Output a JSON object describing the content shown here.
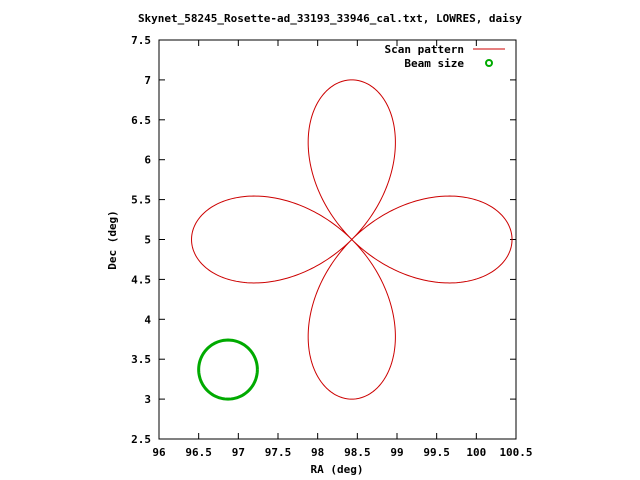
{
  "chart_data": {
    "type": "line",
    "title": "Skynet_58245_Rosette-ad_33193_33946_cal.txt, LOWRES, daisy",
    "xlabel": "RA (deg)",
    "ylabel": "Dec (deg)",
    "xlim": [
      96,
      100.5
    ],
    "ylim": [
      2.5,
      7.5
    ],
    "xticks": [
      "96",
      "96.5",
      "97",
      "97.5",
      "98",
      "98.5",
      "99",
      "99.5",
      "100",
      "100.5"
    ],
    "yticks": [
      "2.5",
      "3",
      "3.5",
      "4",
      "4.5",
      "5",
      "5.5",
      "6",
      "6.5",
      "7",
      "7.5"
    ],
    "legend_position": "top-right",
    "series": [
      {
        "name": "Scan pattern",
        "color": "#cc0000",
        "pattern": "rosette",
        "center": [
          98.43,
          5.0
        ],
        "petal_reach_ra": 2.02,
        "petal_reach_dec": 2.0,
        "petals": 4
      },
      {
        "name": "Beam size",
        "color": "#00aa00",
        "center": [
          96.87,
          3.37
        ],
        "radius_ra": 0.37,
        "radius_dec": 0.37
      }
    ]
  }
}
